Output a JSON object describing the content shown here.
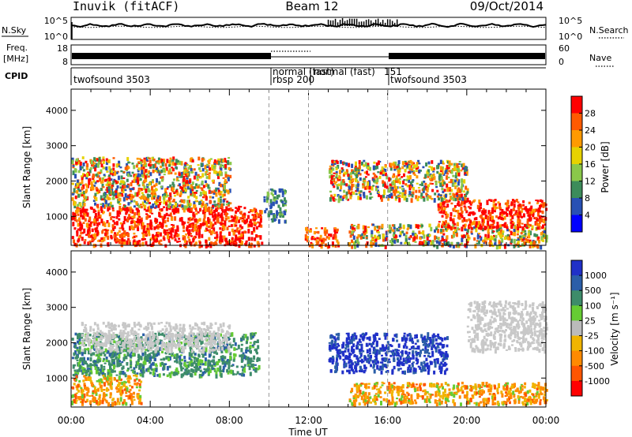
{
  "header": {
    "station": "Inuvik  (fitACF)",
    "beam": "Beam 12",
    "date": "09/Oct/2014"
  },
  "nsky_panel": {
    "left_label": "N.Sky",
    "right_label": "N.Search",
    "left_ticks": [
      "10^5",
      "10^0"
    ],
    "right_ticks": [
      "10^5",
      "10^0"
    ]
  },
  "freq_panel": {
    "left_label_line1": "Freq.",
    "left_label_line2": "[MHz]",
    "right_label": "Nave",
    "left_ticks": [
      "18",
      "8"
    ],
    "right_ticks": [
      "60",
      "0"
    ]
  },
  "cpid": {
    "label": "CPID",
    "segments": [
      "twofsound 3503",
      "normal (fast)",
      "rbsp 200",
      "normal (fast)",
      "151",
      "twofsound 3503"
    ]
  },
  "axes": {
    "ylabel": "Slant Range [km]",
    "xlabel": "Time UT",
    "x_ticks": [
      "00:00",
      "04:00",
      "08:00",
      "12:00",
      "16:00",
      "20:00",
      "00:00"
    ],
    "y_ticks": [
      "1000",
      "2000",
      "3000",
      "4000"
    ]
  },
  "power_colorbar": {
    "label": "Power [dB]",
    "ticks": [
      "28",
      "24",
      "20",
      "16",
      "12",
      "8",
      "4"
    ],
    "colors": [
      "#ff0000",
      "#ff5a00",
      "#ff9a00",
      "#e6d200",
      "#8ac84a",
      "#3c8c5a",
      "#2850b4",
      "#0000ff"
    ]
  },
  "velocity_colorbar": {
    "label": "Velocity  [m s⁻¹]",
    "ticks": [
      "1000",
      "500",
      "100",
      "25",
      "-25",
      "-100",
      "-500",
      "-1000"
    ],
    "colors": [
      "#2030c8",
      "#2b5ea8",
      "#3d8c6a",
      "#66cc33",
      "#bbbbbb",
      "#f0b400",
      "#ff8a00",
      "#ff5500",
      "#ff0000"
    ],
    "ground_scatter_color": "#c8c8c8"
  },
  "chart_data": {
    "type": "heatmap",
    "x_range_hours": [
      0,
      24
    ],
    "y_range_km": [
      180,
      4600
    ],
    "mode_boundaries_hours": [
      10,
      12,
      16
    ],
    "power_clusters": [
      {
        "t0": 0.0,
        "t1": 9.6,
        "r0": 200,
        "r1": 1300,
        "level": "high"
      },
      {
        "t0": 0.0,
        "t1": 8.0,
        "r0": 1300,
        "r1": 2700,
        "level": "mixed"
      },
      {
        "t0": 9.7,
        "t1": 10.8,
        "r0": 900,
        "r1": 1800,
        "level": "low"
      },
      {
        "t0": 11.8,
        "t1": 13.5,
        "r0": 180,
        "r1": 700,
        "level": "mid"
      },
      {
        "t0": 14.0,
        "t1": 24.0,
        "r0": 180,
        "r1": 800,
        "level": "mixed"
      },
      {
        "t0": 18.5,
        "t1": 24.0,
        "r0": 700,
        "r1": 1500,
        "level": "high"
      },
      {
        "t0": 13.0,
        "t1": 20.0,
        "r0": 1500,
        "r1": 2600,
        "level": "mixed"
      }
    ],
    "velocity_clusters": [
      {
        "t0": 0.0,
        "t1": 9.5,
        "r0": 1100,
        "r1": 2300,
        "level": "positive"
      },
      {
        "t0": 0.0,
        "t1": 3.5,
        "r0": 300,
        "r1": 1100,
        "level": "negative"
      },
      {
        "t0": 0.5,
        "t1": 8.0,
        "r0": 1800,
        "r1": 2600,
        "level": "ground"
      },
      {
        "t0": 13.0,
        "t1": 19.0,
        "r0": 1200,
        "r1": 2300,
        "level": "strong_positive"
      },
      {
        "t0": 14.0,
        "t1": 24.0,
        "r0": 300,
        "r1": 900,
        "level": "negative"
      },
      {
        "t0": 20.0,
        "t1": 24.0,
        "r0": 1800,
        "r1": 3200,
        "level": "ground"
      }
    ]
  }
}
